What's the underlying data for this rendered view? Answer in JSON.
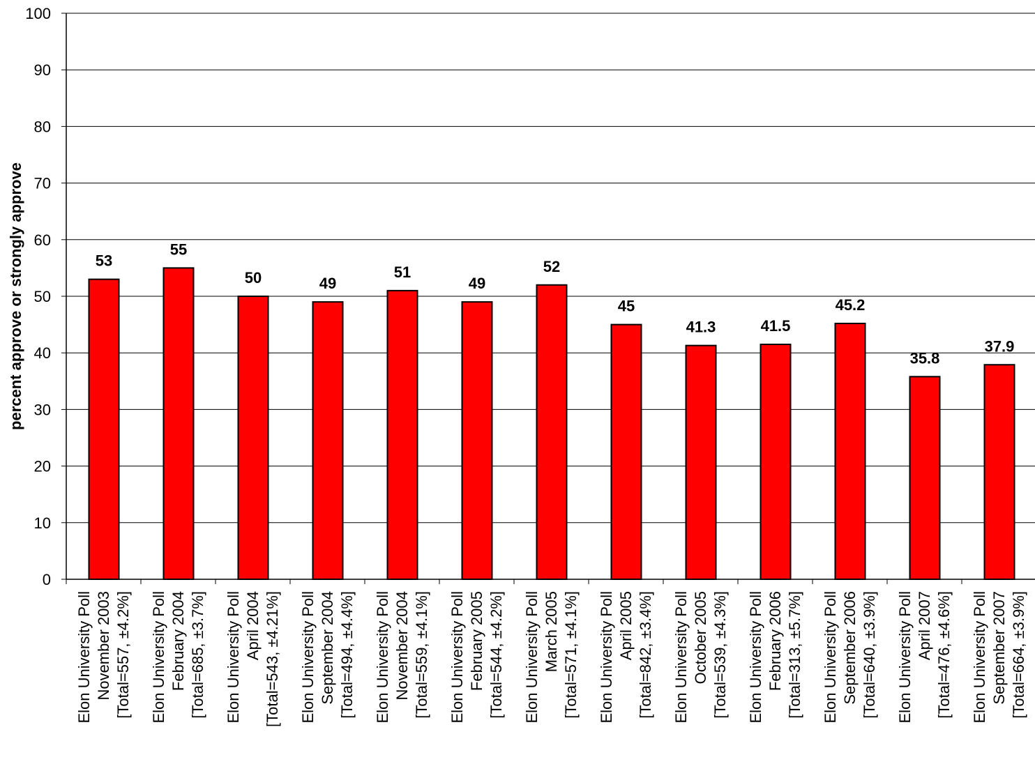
{
  "chart_data": {
    "type": "bar",
    "ylabel": "percent approve or strongly approve",
    "ylim": [
      0,
      100
    ],
    "ytick_step": 10,
    "grid": true,
    "bar_color": "#ff0000",
    "categories": [
      [
        "Elon University Poll",
        "November 2003",
        "[Total=557, ±4.2%]"
      ],
      [
        "Elon University Poll",
        "February 2004",
        "[Total=685, ±3.7%]"
      ],
      [
        "Elon University Poll",
        "April 2004",
        "[Total=543, ±4.21%]"
      ],
      [
        "Elon University Poll",
        "September 2004",
        "[Total=494, ±4.4%]"
      ],
      [
        "Elon University Poll",
        "November 2004",
        "[Total=559, ±4.1%]"
      ],
      [
        "Elon University Poll",
        "February 2005",
        "[Total=544, ±4.2%]"
      ],
      [
        "Elon University Poll",
        "March 2005",
        "[Total=571, ±4.1%]"
      ],
      [
        "Elon University Poll",
        "April 2005",
        "[Total=842, ±3.4%]"
      ],
      [
        "Elon University Poll",
        "October 2005",
        "[Total=539, ±4.3%]"
      ],
      [
        "Elon University Poll",
        "February 2006",
        "[Total=313, ±5.7%]"
      ],
      [
        "Elon University Poll",
        "September 2006",
        "[Total=640, ±3.9%]"
      ],
      [
        "Elon University Poll",
        "April 2007",
        "[Total=476, ±4.6%]"
      ],
      [
        "Elon University Poll",
        "September 2007",
        "[Total=664, ±3.9%]"
      ]
    ],
    "values": [
      53,
      55,
      50,
      49,
      51,
      49,
      52,
      45,
      41.3,
      41.5,
      45.2,
      35.8,
      37.9
    ],
    "value_labels": [
      "53",
      "55",
      "50",
      "49",
      "51",
      "49",
      "52",
      "45",
      "41.3",
      "41.5",
      "45.2",
      "35.8",
      "37.9"
    ]
  }
}
